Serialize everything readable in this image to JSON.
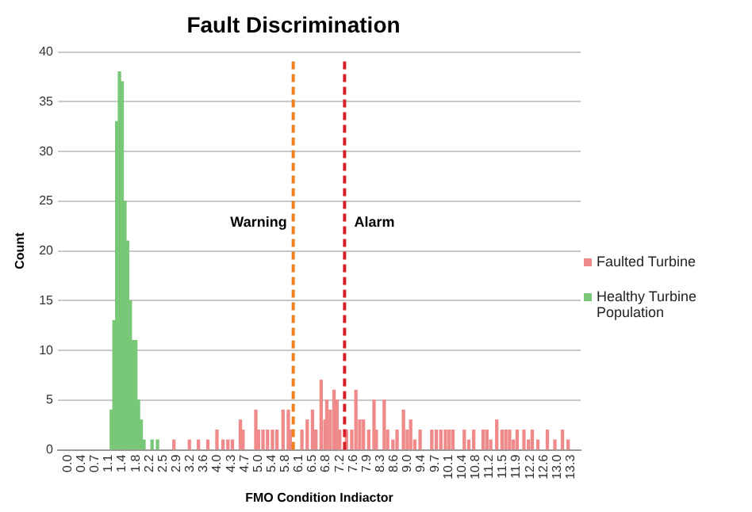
{
  "chart_data": {
    "type": "bar",
    "title": "Fault Discrimination",
    "xlabel": "FMO Condition Indiactor",
    "ylabel": "Count",
    "xlim": [
      -0.08,
      13.4
    ],
    "ylim": [
      0,
      40
    ],
    "yticks": [
      0,
      5,
      10,
      15,
      20,
      25,
      30,
      35,
      40
    ],
    "xticks": [
      {
        "value": 0,
        "label": "0.0"
      },
      {
        "value": 0.36,
        "label": "0.4"
      },
      {
        "value": 0.72,
        "label": "0.7"
      },
      {
        "value": 1.08,
        "label": "1.1"
      },
      {
        "value": 1.44,
        "label": "1.4"
      },
      {
        "value": 1.8,
        "label": "1.8"
      },
      {
        "value": 2.16,
        "label": "2.2"
      },
      {
        "value": 2.52,
        "label": "2.5"
      },
      {
        "value": 2.88,
        "label": "2.9"
      },
      {
        "value": 3.24,
        "label": "3.2"
      },
      {
        "value": 3.6,
        "label": "3.6"
      },
      {
        "value": 3.96,
        "label": "4.0"
      },
      {
        "value": 4.32,
        "label": "4.3"
      },
      {
        "value": 4.68,
        "label": "4.7"
      },
      {
        "value": 5.04,
        "label": "5.0"
      },
      {
        "value": 5.4,
        "label": "5.4"
      },
      {
        "value": 5.76,
        "label": "5.8"
      },
      {
        "value": 6.12,
        "label": "6.1"
      },
      {
        "value": 6.48,
        "label": "6.5"
      },
      {
        "value": 6.84,
        "label": "6.8"
      },
      {
        "value": 7.2,
        "label": "7.2"
      },
      {
        "value": 7.56,
        "label": "7.6"
      },
      {
        "value": 7.92,
        "label": "7.9"
      },
      {
        "value": 8.28,
        "label": "8.3"
      },
      {
        "value": 8.64,
        "label": "8.6"
      },
      {
        "value": 9,
        "label": "9.0"
      },
      {
        "value": 9.36,
        "label": "9.4"
      },
      {
        "value": 9.72,
        "label": "9.7"
      },
      {
        "value": 10.08,
        "label": "10.1"
      },
      {
        "value": 10.44,
        "label": "10.4"
      },
      {
        "value": 10.8,
        "label": "10.8"
      },
      {
        "value": 11.16,
        "label": "11.2"
      },
      {
        "value": 11.52,
        "label": "11.5"
      },
      {
        "value": 11.88,
        "label": "11.9"
      },
      {
        "value": 12.24,
        "label": "12.2"
      },
      {
        "value": 12.6,
        "label": "12.6"
      },
      {
        "value": 12.96,
        "label": "13.0"
      },
      {
        "value": 13.32,
        "label": "13.3"
      }
    ],
    "grid": "y",
    "legend": "right",
    "series": [
      {
        "name": "Faulted Turbine",
        "color": "#f08a8a",
        "x": [
          2.81,
          3.22,
          3.46,
          3.71,
          3.95,
          4.11,
          4.24,
          4.36,
          4.57,
          4.64,
          4.98,
          5.05,
          5.17,
          5.29,
          5.42,
          5.54,
          5.7,
          5.84,
          5.89,
          6.2,
          6.34,
          6.48,
          6.57,
          6.71,
          6.81,
          6.86,
          6.95,
          7.05,
          7.13,
          7.2,
          7.38,
          7.52,
          7.63,
          7.73,
          7.83,
          7.97,
          8.11,
          8.17,
          8.38,
          8.47,
          8.61,
          8.72,
          8.89,
          8.99,
          9.08,
          9.19,
          9.33,
          9.64,
          9.76,
          9.88,
          10.0,
          10.1,
          10.2,
          10.5,
          10.62,
          10.75,
          11.0,
          11.1,
          11.2,
          11.36,
          11.5,
          11.6,
          11.7,
          11.8,
          11.9,
          12.08,
          12.2,
          12.3,
          12.45,
          12.7,
          12.9,
          13.1,
          13.25
        ],
        "values": [
          1,
          1,
          1,
          1,
          2,
          1,
          1,
          1,
          3,
          2,
          4,
          2,
          2,
          2,
          2,
          2,
          4,
          4,
          2,
          2,
          3,
          4,
          2,
          7,
          3,
          5,
          4,
          6,
          5,
          2,
          2,
          2,
          6,
          3,
          3,
          2,
          5,
          2,
          5,
          2,
          1,
          2,
          4,
          2,
          3,
          1,
          2,
          2,
          2,
          2,
          2,
          2,
          2,
          2,
          1,
          2,
          2,
          2,
          1,
          3,
          2,
          2,
          2,
          1,
          2,
          2,
          1,
          2,
          1,
          2,
          1,
          2,
          1
        ]
      },
      {
        "name": "Healthy Turbine Population",
        "color": "#78c878",
        "x": [
          1.152,
          1.224,
          1.296,
          1.368,
          1.44,
          1.512,
          1.584,
          1.656,
          1.728,
          1.8,
          1.872,
          1.944,
          2.016,
          2.232,
          2.376
        ],
        "values": [
          4,
          13,
          33,
          38,
          37,
          25,
          21,
          15,
          11,
          11,
          5,
          3,
          1,
          1,
          1
        ]
      }
    ],
    "ref_lines": [
      {
        "axis": "x",
        "value": 5.97,
        "label": "Warning",
        "color": "#f07f1f",
        "line_style": "dashed"
      },
      {
        "axis": "x",
        "value": 7.33,
        "label": "Alarm",
        "color": "#d8202b",
        "line_style": "dashed"
      }
    ]
  }
}
